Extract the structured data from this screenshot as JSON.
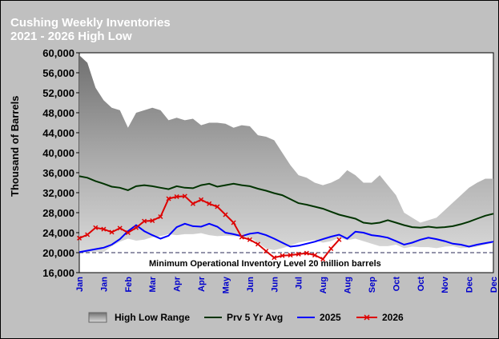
{
  "chart_data": {
    "type": "area",
    "title": [
      "Cushing Weekly Inventories",
      "2021 - 2026 High Low"
    ],
    "ylabel": "Thousand of Barrels",
    "ylim": [
      16000,
      60000
    ],
    "y_ticks": [
      "60,000",
      "56,000",
      "52,000",
      "48,000",
      "44,000",
      "40,000",
      "36,000",
      "32,000",
      "28,000",
      "24,000",
      "20,000",
      "16,000"
    ],
    "y_tick_values": [
      60000,
      56000,
      52000,
      48000,
      44000,
      40000,
      36000,
      32000,
      28000,
      24000,
      20000,
      16000
    ],
    "x_ticks": [
      "Jan",
      "Jan",
      "Feb",
      "Mar",
      "Apr",
      "Apr",
      "May",
      "Jun",
      "Jun",
      "Jul",
      "Aug",
      "Aug",
      "Sep",
      "Oct",
      "Oct",
      "Nov",
      "Dec",
      "Dec"
    ],
    "weeks": 52,
    "annotation": "Minimum Operational Inventory Level 20 million barrels",
    "min_level": 20000,
    "legend": [
      "High Low Range",
      "Prv 5 Yr Avg",
      "2025",
      "2026"
    ],
    "colors": {
      "range": "#a0a0a0",
      "avg": "#003300",
      "y2025": "#0000ff",
      "y2026": "#dd0000",
      "plot_bg": "#ffffff"
    },
    "series": [
      {
        "name": "High Low Range",
        "kind": "range",
        "high": [
          59500,
          58000,
          53000,
          50500,
          49000,
          48500,
          45000,
          48000,
          48500,
          49000,
          48500,
          46500,
          47000,
          46500,
          46800,
          45500,
          46000,
          46000,
          45800,
          45000,
          45500,
          45300,
          43500,
          43200,
          42500,
          40000,
          37500,
          35500,
          35000,
          34000,
          33500,
          34000,
          34800,
          36500,
          35500,
          34000,
          34000,
          35500,
          33500,
          31500,
          28000,
          27000,
          26000,
          26500,
          27000,
          28500,
          30000,
          31500,
          33000,
          34000,
          34800,
          34800
        ],
        "low": [
          20000,
          20000,
          20200,
          20100,
          21300,
          22200,
          22800,
          22400,
          22600,
          23100,
          23300,
          23700,
          23500,
          23700,
          23700,
          23900,
          23500,
          23300,
          23400,
          23300,
          23200,
          23000,
          22000,
          20800,
          20500,
          20900,
          21400,
          22000,
          22300,
          22500,
          22000,
          22300,
          23000,
          22500,
          22800,
          22300,
          21800,
          21300,
          21300,
          21600,
          20900,
          21200,
          21100,
          21100,
          20900,
          21200,
          21300,
          20900,
          21000,
          21200,
          21600,
          21900
        ]
      },
      {
        "name": "Prv 5 Yr Avg",
        "kind": "line",
        "values": [
          35300,
          35000,
          34300,
          33800,
          33200,
          33000,
          32500,
          33300,
          33500,
          33300,
          33000,
          32700,
          33300,
          33000,
          32900,
          33500,
          33800,
          33200,
          33500,
          33800,
          33500,
          33300,
          32800,
          32400,
          31900,
          31500,
          30700,
          29900,
          29600,
          29200,
          28800,
          28200,
          27600,
          27200,
          26800,
          26000,
          25800,
          26000,
          26500,
          26000,
          25500,
          25100,
          25000,
          25200,
          25000,
          25100,
          25300,
          25700,
          26200,
          26800,
          27400,
          27800
        ]
      },
      {
        "name": "2025",
        "kind": "line",
        "values": [
          20100,
          20400,
          20700,
          21000,
          21600,
          22700,
          24300,
          25500,
          24300,
          23500,
          22800,
          23400,
          25100,
          25800,
          25300,
          25200,
          25800,
          25200,
          24000,
          23700,
          23300,
          23800,
          24000,
          23500,
          22800,
          22000,
          21200,
          21400,
          21800,
          22200,
          22700,
          23200,
          23600,
          22800,
          24200,
          24000,
          23500,
          23300,
          23000,
          22300,
          21600,
          22000,
          22600,
          23000,
          22700,
          22300,
          21800,
          21600,
          21200,
          21600,
          21900,
          22200
        ]
      },
      {
        "name": "2026",
        "kind": "line",
        "values": [
          22900,
          23600,
          25000,
          24700,
          24100,
          24900,
          24000,
          25000,
          26300,
          26400,
          27200,
          30800,
          31200,
          31300,
          29800,
          30600,
          29800,
          29200,
          27600,
          26000,
          23100,
          22600,
          21700,
          20300,
          19000,
          19400,
          19500,
          19700,
          19900,
          19500,
          18700,
          20800,
          22600
        ]
      }
    ]
  }
}
